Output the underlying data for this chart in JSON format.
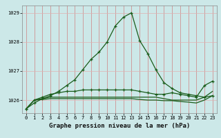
{
  "title": "Graphe pression niveau de la mer (hPa)",
  "background_color": "#cce8e8",
  "line_color": "#1a5c1a",
  "x_values": [
    0,
    1,
    2,
    3,
    4,
    5,
    6,
    7,
    8,
    9,
    10,
    11,
    12,
    13,
    14,
    15,
    16,
    17,
    18,
    19,
    20,
    21,
    22,
    23
  ],
  "y_main": [
    1025.7,
    1025.9,
    1026.05,
    1026.15,
    1026.3,
    1026.5,
    1026.7,
    1027.05,
    1027.4,
    1027.65,
    1028.0,
    1028.55,
    1028.85,
    1029.0,
    1028.05,
    1027.6,
    1027.05,
    1026.6,
    1026.4,
    1026.25,
    1026.2,
    1026.15,
    1026.1,
    1026.15
  ],
  "y_line2": [
    1025.7,
    1026.0,
    1026.1,
    1026.2,
    1026.25,
    1026.3,
    1026.3,
    1026.35,
    1026.35,
    1026.35,
    1026.35,
    1026.35,
    1026.35,
    1026.35,
    1026.3,
    1026.25,
    1026.2,
    1026.2,
    1026.25,
    1026.2,
    1026.15,
    1026.1,
    1026.5,
    1026.65
  ],
  "y_line3": [
    1025.7,
    1026.0,
    1026.05,
    1026.1,
    1026.1,
    1026.1,
    1026.1,
    1026.1,
    1026.1,
    1026.1,
    1026.1,
    1026.1,
    1026.1,
    1026.1,
    1026.1,
    1026.1,
    1026.1,
    1026.05,
    1026.0,
    1026.0,
    1026.0,
    1026.0,
    1026.1,
    1026.3
  ],
  "y_line4": [
    1025.7,
    1026.0,
    1026.02,
    1026.05,
    1026.05,
    1026.05,
    1026.05,
    1026.05,
    1026.05,
    1026.05,
    1026.05,
    1026.05,
    1026.05,
    1026.05,
    1026.02,
    1026.0,
    1026.0,
    1025.98,
    1025.98,
    1025.95,
    1025.93,
    1025.9,
    1026.0,
    1026.15
  ],
  "ylim": [
    1025.55,
    1029.25
  ],
  "yticks": [
    1026,
    1027,
    1028,
    1029
  ],
  "xlim": [
    -0.5,
    23.5
  ],
  "xticks": [
    0,
    1,
    2,
    3,
    4,
    5,
    6,
    7,
    8,
    9,
    10,
    11,
    12,
    13,
    14,
    15,
    16,
    17,
    18,
    19,
    20,
    21,
    22,
    23
  ],
  "tick_fontsize": 5.0,
  "label_fontsize": 6.5,
  "marker": "+"
}
